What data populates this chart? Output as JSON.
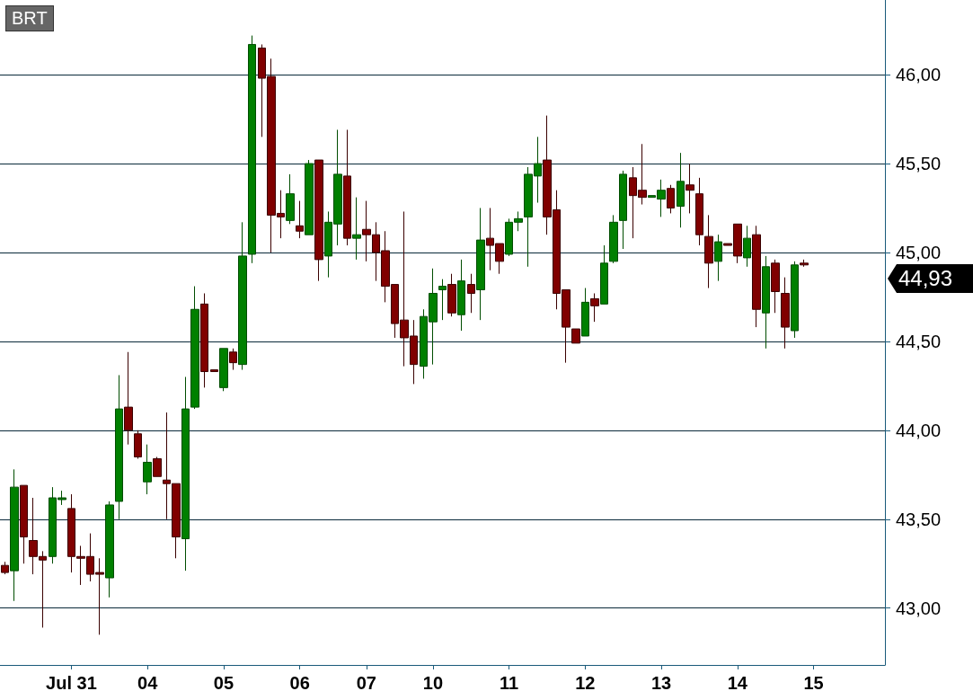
{
  "chart_data": {
    "type": "candlestick",
    "title": "BRT",
    "categories": [
      null,
      null,
      null,
      null,
      null,
      null,
      null,
      "Jul 31",
      null,
      null,
      null,
      null,
      null,
      null,
      null,
      "04",
      null,
      null,
      null,
      null,
      null,
      null,
      null,
      "05",
      null,
      null,
      null,
      null,
      null,
      null,
      null,
      "06",
      null,
      null,
      null,
      null,
      null,
      null,
      "07",
      null,
      null,
      null,
      null,
      null,
      null,
      "10",
      null,
      null,
      null,
      null,
      null,
      null,
      null,
      "11",
      null,
      null,
      null,
      null,
      null,
      null,
      null,
      "12",
      null,
      null,
      null,
      null,
      null,
      null,
      null,
      "13",
      null,
      null,
      null,
      null,
      null,
      null,
      null,
      "14",
      null,
      null,
      null,
      null,
      null,
      null,
      null,
      "15",
      null,
      null,
      null,
      null,
      null,
      null,
      null
    ],
    "ohlc": [
      [
        43.24,
        43.26,
        43.19,
        43.2
      ],
      [
        43.21,
        43.78,
        43.04,
        43.68
      ],
      [
        43.69,
        43.69,
        43.25,
        43.4
      ],
      [
        43.38,
        43.62,
        43.19,
        43.29
      ],
      [
        43.29,
        43.32,
        42.89,
        43.27
      ],
      [
        43.29,
        43.68,
        43.25,
        43.62
      ],
      [
        43.61,
        43.66,
        43.58,
        43.62
      ],
      [
        43.56,
        43.64,
        43.2,
        43.29
      ],
      [
        43.29,
        43.35,
        43.13,
        43.28
      ],
      [
        43.29,
        43.42,
        43.15,
        43.19
      ],
      [
        43.2,
        43.28,
        42.85,
        43.19
      ],
      [
        43.17,
        43.6,
        43.06,
        43.58
      ],
      [
        43.6,
        44.31,
        43.5,
        44.12
      ],
      [
        44.13,
        44.44,
        43.92,
        44.0
      ],
      [
        43.98,
        44.0,
        43.84,
        43.85
      ],
      [
        43.71,
        43.92,
        43.64,
        43.82
      ],
      [
        43.84,
        43.85,
        43.74,
        43.74
      ],
      [
        43.72,
        44.1,
        43.5,
        43.7
      ],
      [
        43.7,
        43.7,
        43.28,
        43.4
      ],
      [
        43.39,
        44.3,
        43.21,
        44.12
      ],
      [
        44.13,
        44.81,
        44.12,
        44.68
      ],
      [
        44.71,
        44.77,
        44.24,
        44.33
      ],
      [
        44.34,
        44.34,
        44.33,
        44.33
      ],
      [
        44.24,
        44.46,
        44.22,
        44.46
      ],
      [
        44.44,
        44.46,
        44.34,
        44.38
      ],
      [
        44.37,
        45.17,
        44.34,
        44.98
      ],
      [
        44.99,
        46.22,
        44.94,
        46.17
      ],
      [
        46.15,
        46.17,
        45.65,
        45.98
      ],
      [
        45.99,
        46.09,
        45.0,
        45.21
      ],
      [
        45.22,
        45.35,
        45.08,
        45.2
      ],
      [
        45.18,
        45.44,
        45.16,
        45.33
      ],
      [
        45.15,
        45.29,
        45.08,
        45.12
      ],
      [
        45.1,
        45.52,
        45.1,
        45.5
      ],
      [
        45.52,
        45.52,
        44.84,
        44.96
      ],
      [
        44.98,
        45.23,
        44.86,
        45.17
      ],
      [
        45.16,
        45.69,
        45.04,
        45.44
      ],
      [
        45.43,
        45.69,
        45.04,
        45.08
      ],
      [
        45.08,
        45.31,
        44.96,
        45.1
      ],
      [
        45.13,
        45.29,
        44.95,
        45.1
      ],
      [
        45.1,
        45.17,
        44.84,
        45.0
      ],
      [
        45.01,
        45.12,
        44.72,
        44.81
      ],
      [
        44.82,
        44.82,
        44.52,
        44.6
      ],
      [
        44.62,
        45.23,
        44.36,
        44.52
      ],
      [
        44.53,
        44.62,
        44.26,
        44.37
      ],
      [
        44.36,
        44.68,
        44.29,
        44.64
      ],
      [
        44.61,
        44.91,
        44.37,
        44.77
      ],
      [
        44.79,
        44.85,
        44.62,
        44.81
      ],
      [
        44.82,
        44.88,
        44.64,
        44.66
      ],
      [
        44.65,
        44.96,
        44.56,
        44.84
      ],
      [
        44.82,
        44.88,
        44.66,
        44.77
      ],
      [
        44.79,
        45.25,
        44.62,
        45.07
      ],
      [
        45.08,
        45.25,
        44.9,
        45.04
      ],
      [
        45.05,
        45.05,
        44.88,
        44.95
      ],
      [
        44.99,
        45.19,
        44.98,
        45.17
      ],
      [
        45.17,
        45.23,
        45.12,
        45.19
      ],
      [
        45.2,
        45.48,
        44.92,
        45.44
      ],
      [
        45.43,
        45.65,
        45.28,
        45.5
      ],
      [
        45.52,
        45.77,
        45.1,
        45.2
      ],
      [
        45.24,
        45.35,
        44.68,
        44.77
      ],
      [
        44.79,
        44.79,
        44.38,
        44.58
      ],
      [
        44.57,
        44.57,
        44.49,
        44.49
      ],
      [
        44.53,
        44.8,
        44.53,
        44.72
      ],
      [
        44.74,
        44.77,
        44.61,
        44.7
      ],
      [
        44.71,
        45.04,
        44.71,
        44.94
      ],
      [
        44.95,
        45.21,
        44.94,
        45.17
      ],
      [
        45.18,
        45.46,
        45.02,
        45.44
      ],
      [
        45.42,
        45.48,
        45.08,
        45.32
      ],
      [
        45.35,
        45.61,
        45.27,
        45.31
      ],
      [
        45.31,
        45.32,
        45.31,
        45.32
      ],
      [
        45.3,
        45.41,
        45.2,
        45.35
      ],
      [
        45.36,
        45.38,
        45.22,
        45.25
      ],
      [
        45.26,
        45.56,
        45.14,
        45.4
      ],
      [
        45.38,
        45.5,
        45.22,
        45.35
      ],
      [
        45.33,
        45.42,
        45.04,
        45.1
      ],
      [
        45.09,
        45.21,
        44.8,
        44.94
      ],
      [
        44.95,
        45.1,
        44.84,
        45.06
      ],
      [
        45.05,
        45.05,
        45.04,
        45.04
      ],
      [
        45.16,
        45.16,
        44.94,
        44.98
      ],
      [
        44.97,
        45.15,
        44.92,
        45.08
      ],
      [
        45.1,
        45.15,
        44.58,
        44.68
      ],
      [
        44.66,
        44.98,
        44.46,
        44.92
      ],
      [
        44.94,
        44.96,
        44.66,
        44.78
      ],
      [
        44.77,
        44.86,
        44.46,
        44.58
      ],
      [
        44.56,
        44.95,
        44.52,
        44.93
      ],
      [
        44.94,
        44.96,
        44.92,
        44.93
      ],
      null,
      null,
      null,
      null,
      null,
      null,
      null,
      null
    ],
    "ylim": [
      42.68,
      46.42
    ],
    "yticks": [
      {
        "value": 43,
        "label": "43,00"
      },
      {
        "value": 43.5,
        "label": "43,50"
      },
      {
        "value": 44,
        "label": "44,00"
      },
      {
        "value": 44.5,
        "label": "44,50"
      },
      {
        "value": 45,
        "label": "45,00"
      },
      {
        "value": 45.5,
        "label": "45,50"
      },
      {
        "value": 46,
        "label": "46,00"
      }
    ],
    "grid": "y",
    "annotations": [
      "44,93"
    ]
  }
}
